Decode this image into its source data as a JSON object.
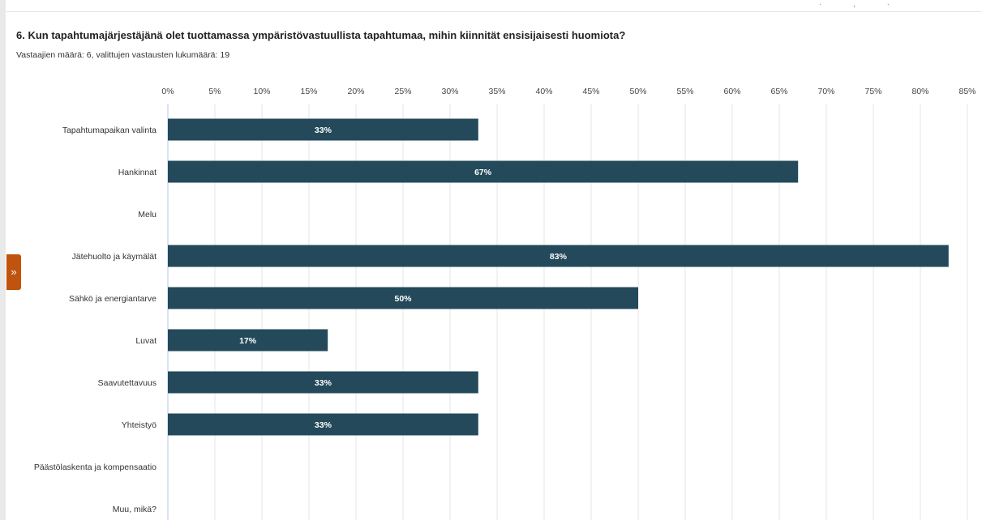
{
  "header": {
    "question": "6. Kun tapahtumajärjestäjänä olet tuottamassa ympäristövastuullista tapahtumaa, mihin kiinnität ensisijaisesti huomiota?",
    "meta": "Vastaajien määrä: 6, valittujen vastausten lukumäärä: 19"
  },
  "colors": {
    "bar": "#23495a",
    "grid": "#e6e6e6",
    "expander": "#c0530e"
  },
  "icons": {
    "expander": "double-chevron-right-icon"
  },
  "chart_data": {
    "type": "bar",
    "orientation": "horizontal",
    "categories": [
      "Tapahtumapaikan valinta",
      "Hankinnat",
      "Melu",
      "Jätehuolto ja käymälät",
      "Sähkö ja energiantarve",
      "Luvat",
      "Saavutettavuus",
      "Yhteistyö",
      "Päästölaskenta ja kompensaatio",
      "Muu, mikä?"
    ],
    "values": [
      33,
      67,
      0,
      83,
      50,
      17,
      33,
      33,
      0,
      0
    ],
    "data_labels": [
      "33%",
      "67%",
      "",
      "83%",
      "50%",
      "17%",
      "33%",
      "33%",
      "",
      ""
    ],
    "ticks": [
      0,
      5,
      10,
      15,
      20,
      25,
      30,
      35,
      40,
      45,
      50,
      55,
      60,
      65,
      70,
      75,
      80,
      85
    ],
    "tick_labels": [
      "0%",
      "5%",
      "10%",
      "15%",
      "20%",
      "25%",
      "30%",
      "35%",
      "40%",
      "45%",
      "50%",
      "55%",
      "60%",
      "65%",
      "70%",
      "75%",
      "80%",
      "85%"
    ],
    "xlim": [
      0,
      85
    ],
    "axis_position": "top",
    "grid": true,
    "legend": "none"
  }
}
